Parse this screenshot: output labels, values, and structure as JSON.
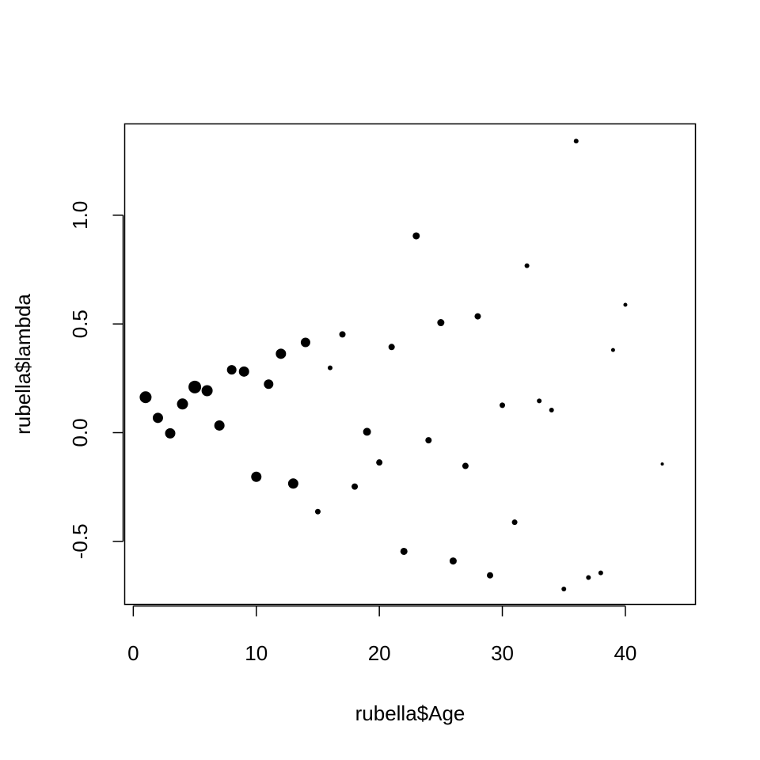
{
  "chart_data": {
    "type": "scatter",
    "xlabel": "rubella$Age",
    "ylabel": "rubella$lambda",
    "xlim": [
      -0.7,
      45.7
    ],
    "ylim": [
      -0.79,
      1.42
    ],
    "x_ticks": [
      0,
      10,
      20,
      30,
      40
    ],
    "x_tick_labels": [
      "0",
      "10",
      "20",
      "30",
      "40"
    ],
    "y_ticks": [
      -0.5,
      0.0,
      0.5,
      1.0
    ],
    "y_tick_labels": [
      "-0.5",
      "0.0",
      "0.5",
      "1.0"
    ],
    "grid": false,
    "point_color": "#000000",
    "points": [
      {
        "x": 1,
        "y": 0.163,
        "size": 7.5
      },
      {
        "x": 2,
        "y": 0.068,
        "size": 6.5
      },
      {
        "x": 3,
        "y": -0.003,
        "size": 6.5
      },
      {
        "x": 4,
        "y": 0.132,
        "size": 7.0
      },
      {
        "x": 5,
        "y": 0.21,
        "size": 8.0
      },
      {
        "x": 6,
        "y": 0.193,
        "size": 7.0
      },
      {
        "x": 7,
        "y": 0.033,
        "size": 6.5
      },
      {
        "x": 8,
        "y": 0.289,
        "size": 6.0
      },
      {
        "x": 9,
        "y": 0.281,
        "size": 6.5
      },
      {
        "x": 10,
        "y": -0.203,
        "size": 6.5
      },
      {
        "x": 11,
        "y": 0.223,
        "size": 6.0
      },
      {
        "x": 12,
        "y": 0.363,
        "size": 6.5
      },
      {
        "x": 13,
        "y": -0.234,
        "size": 6.5
      },
      {
        "x": 14,
        "y": 0.415,
        "size": 6.0
      },
      {
        "x": 15,
        "y": -0.363,
        "size": 3.5
      },
      {
        "x": 16,
        "y": 0.298,
        "size": 3.0
      },
      {
        "x": 17,
        "y": 0.452,
        "size": 4.0
      },
      {
        "x": 18,
        "y": -0.248,
        "size": 4.0
      },
      {
        "x": 19,
        "y": 0.004,
        "size": 5.0
      },
      {
        "x": 20,
        "y": -0.137,
        "size": 4.0
      },
      {
        "x": 21,
        "y": 0.394,
        "size": 4.0
      },
      {
        "x": 22,
        "y": -0.546,
        "size": 4.5
      },
      {
        "x": 23,
        "y": 0.905,
        "size": 4.5
      },
      {
        "x": 24,
        "y": -0.035,
        "size": 4.0
      },
      {
        "x": 25,
        "y": 0.506,
        "size": 4.5
      },
      {
        "x": 26,
        "y": -0.59,
        "size": 4.5
      },
      {
        "x": 27,
        "y": -0.153,
        "size": 4.0
      },
      {
        "x": 28,
        "y": 0.535,
        "size": 4.0
      },
      {
        "x": 29,
        "y": -0.656,
        "size": 4.0
      },
      {
        "x": 30,
        "y": 0.126,
        "size": 3.5
      },
      {
        "x": 31,
        "y": -0.412,
        "size": 3.5
      },
      {
        "x": 32,
        "y": 0.768,
        "size": 3.0
      },
      {
        "x": 33,
        "y": 0.146,
        "size": 3.0
      },
      {
        "x": 34,
        "y": 0.104,
        "size": 3.0
      },
      {
        "x": 35,
        "y": -0.719,
        "size": 3.0
      },
      {
        "x": 36,
        "y": 1.341,
        "size": 3.0
      },
      {
        "x": 37,
        "y": -0.666,
        "size": 3.0
      },
      {
        "x": 38,
        "y": -0.645,
        "size": 3.0
      },
      {
        "x": 39,
        "y": 0.38,
        "size": 2.5
      },
      {
        "x": 40,
        "y": 0.588,
        "size": 2.5
      },
      {
        "x": 43,
        "y": -0.144,
        "size": 2.0
      }
    ]
  }
}
